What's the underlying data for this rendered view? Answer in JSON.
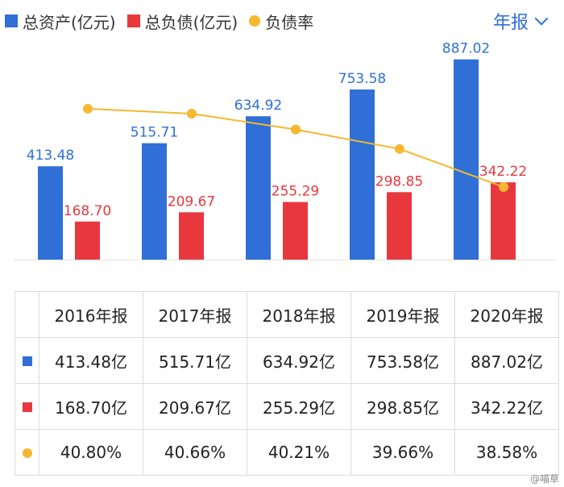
{
  "legend": {
    "assets": "总资产(亿元)",
    "liabilities": "总负债(亿元)",
    "ratio": "负债率"
  },
  "period_selector": "年报",
  "colors": {
    "assets": "#2f6fd6",
    "liabilities": "#e8383d",
    "ratio": "#f5b82e"
  },
  "chart_data": {
    "type": "bar",
    "categories": [
      "2016年报",
      "2017年报",
      "2018年报",
      "2019年报",
      "2020年报"
    ],
    "series": [
      {
        "name": "总资产(亿元)",
        "type": "bar",
        "values": [
          413.48,
          515.71,
          634.92,
          753.58,
          887.02
        ],
        "labels": [
          "413.48",
          "515.71",
          "634.92",
          "753.58",
          "887.02"
        ]
      },
      {
        "name": "总负债(亿元)",
        "type": "bar",
        "values": [
          168.7,
          209.67,
          255.29,
          298.85,
          342.22
        ],
        "labels": [
          "168.70",
          "209.67",
          "255.29",
          "298.85",
          "342.22"
        ]
      },
      {
        "name": "负债率",
        "type": "line",
        "values": [
          40.8,
          40.66,
          40.21,
          39.66,
          38.58
        ],
        "unit": "%"
      }
    ],
    "bar_ylim": [
      0,
      1000
    ],
    "line_ylim": [
      37.8,
      41.3
    ]
  },
  "table": {
    "headers": [
      "2016年报",
      "2017年报",
      "2018年报",
      "2019年报",
      "2020年报"
    ],
    "rows": [
      {
        "marker": "assets",
        "cells": [
          "413.48亿",
          "515.71亿",
          "634.92亿",
          "753.58亿",
          "887.02亿"
        ]
      },
      {
        "marker": "liabilities",
        "cells": [
          "168.70亿",
          "209.67亿",
          "255.29亿",
          "298.85亿",
          "342.22亿"
        ]
      },
      {
        "marker": "ratio",
        "cells": [
          "40.80%",
          "40.66%",
          "40.21%",
          "39.66%",
          "38.58%"
        ]
      }
    ]
  },
  "watermark": "@喵草"
}
